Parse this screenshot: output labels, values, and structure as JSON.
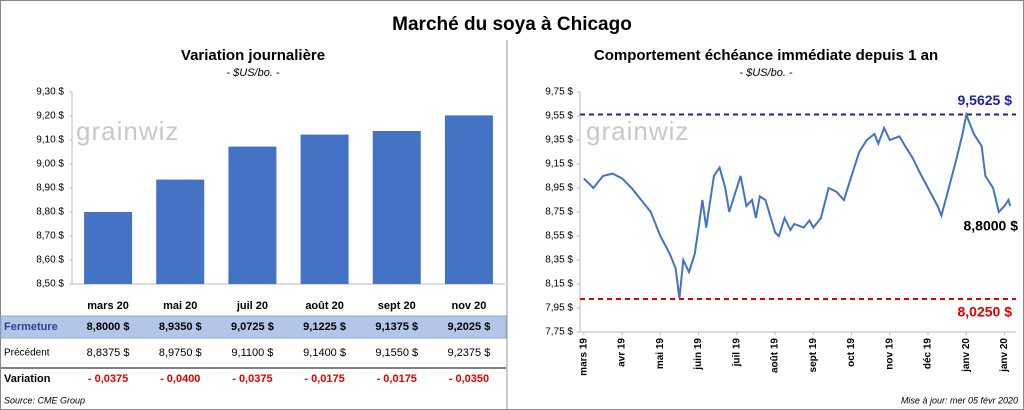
{
  "title": "Marché du soya à Chicago",
  "chart_data": [
    {
      "type": "bar",
      "title": "Variation  journalière",
      "subtitle": "- $US/bo. -",
      "watermark": "grainwiz",
      "categories": [
        "mars 20",
        "mai 20",
        "juil 20",
        "août 20",
        "sept 20",
        "nov 20"
      ],
      "values": [
        8.8,
        8.935,
        9.0725,
        9.1225,
        9.1375,
        9.2025
      ],
      "color": "#4472c4",
      "ylim": [
        8.5,
        9.3
      ],
      "yticks": [
        {
          "value": 8.5,
          "label": "8,50 $"
        },
        {
          "value": 8.6,
          "label": "8,60 $"
        },
        {
          "value": 8.7,
          "label": "8,70 $"
        },
        {
          "value": 8.8,
          "label": "8,80 $"
        },
        {
          "value": 8.9,
          "label": "8,90 $"
        },
        {
          "value": 9.0,
          "label": "9,00 $"
        },
        {
          "value": 9.1,
          "label": "9,10 $"
        },
        {
          "value": 9.2,
          "label": "9,20 $"
        },
        {
          "value": 9.3,
          "label": "9,30 $"
        }
      ]
    },
    {
      "type": "line",
      "title": "Comportement  échéance immédiate depuis 1 an",
      "subtitle": "- $US/bo. -",
      "watermark": "grainwiz",
      "x": [
        0,
        0.25,
        0.5,
        0.75,
        1.0,
        1.25,
        1.5,
        1.75,
        2.0,
        2.25,
        2.4,
        2.5,
        2.6,
        2.75,
        2.9,
        3.0,
        3.1,
        3.2,
        3.4,
        3.55,
        3.7,
        3.8,
        4.0,
        4.1,
        4.25,
        4.4,
        4.5,
        4.6,
        4.75,
        5.0,
        5.1,
        5.25,
        5.4,
        5.5,
        5.75,
        5.9,
        6.0,
        6.2,
        6.4,
        6.6,
        6.8,
        7.0,
        7.2,
        7.4,
        7.6,
        7.7,
        7.85,
        8.0,
        8.25,
        8.4,
        8.6,
        8.75,
        9.0,
        9.25,
        9.35,
        9.5,
        9.75,
        9.9,
        10.0,
        10.2,
        10.4,
        10.5,
        10.7,
        10.85,
        11.0,
        11.1,
        11.15
      ],
      "series": [
        {
          "name": "Échéance immédiate",
          "color": "#4472c4",
          "values": [
            9.03,
            8.95,
            9.05,
            9.07,
            9.03,
            8.95,
            8.85,
            8.75,
            8.55,
            8.4,
            8.28,
            8.03,
            8.35,
            8.25,
            8.4,
            8.62,
            8.85,
            8.62,
            9.05,
            9.12,
            8.95,
            8.75,
            8.95,
            9.05,
            8.8,
            8.85,
            8.7,
            8.88,
            8.85,
            8.58,
            8.55,
            8.7,
            8.6,
            8.65,
            8.62,
            8.68,
            8.62,
            8.7,
            8.95,
            8.92,
            8.85,
            9.05,
            9.25,
            9.35,
            9.4,
            9.32,
            9.45,
            9.35,
            9.38,
            9.3,
            9.2,
            9.1,
            8.95,
            8.8,
            8.72,
            8.9,
            9.2,
            9.4,
            9.56,
            9.4,
            9.3,
            9.05,
            8.95,
            8.75,
            8.8,
            8.85,
            8.8
          ]
        }
      ],
      "xlim": [
        -0.1,
        11.3
      ],
      "xticks": [
        {
          "value": 0,
          "label": "mars 19"
        },
        {
          "value": 1,
          "label": "avr 19"
        },
        {
          "value": 2,
          "label": "mai 19"
        },
        {
          "value": 3,
          "label": "juin 19"
        },
        {
          "value": 4,
          "label": "juil 19"
        },
        {
          "value": 5,
          "label": "août 19"
        },
        {
          "value": 6,
          "label": "sept 19"
        },
        {
          "value": 7,
          "label": "oct 19"
        },
        {
          "value": 8,
          "label": "nov 19"
        },
        {
          "value": 9,
          "label": "déc 19"
        },
        {
          "value": 10,
          "label": "janv 20"
        },
        {
          "value": 11,
          "label": "janv 20"
        }
      ],
      "ylim": [
        7.75,
        9.75
      ],
      "yticks": [
        {
          "value": 7.75,
          "label": "7,75 $"
        },
        {
          "value": 7.95,
          "label": "7,95 $"
        },
        {
          "value": 8.15,
          "label": "8,15 $"
        },
        {
          "value": 8.35,
          "label": "8,35 $"
        },
        {
          "value": 8.55,
          "label": "8,55 $"
        },
        {
          "value": 8.75,
          "label": "8,75 $"
        },
        {
          "value": 8.95,
          "label": "8,95 $"
        },
        {
          "value": 9.15,
          "label": "9,15 $"
        },
        {
          "value": 9.35,
          "label": "9,35 $"
        },
        {
          "value": 9.55,
          "label": "9,55 $"
        },
        {
          "value": 9.75,
          "label": "9,75 $"
        }
      ],
      "reference_lines": [
        {
          "value": 9.5625,
          "label": "9,5625  $",
          "color": "#2323a0"
        },
        {
          "value": 8.025,
          "label": "8,0250  $",
          "color": "#e00000"
        }
      ],
      "last_label": {
        "value": 8.8,
        "label": "8,8000 $"
      }
    }
  ],
  "table": {
    "rows": [
      [
        "Fermeture",
        "8,8000  $",
        "8,9350  $",
        "9,0725  $",
        "9,1225  $",
        "9,1375  $",
        "9,2025  $"
      ],
      [
        "Précédent",
        "8,8375  $",
        "8,9750  $",
        "9,1100  $",
        "9,1400  $",
        "9,1550  $",
        "9,2375  $"
      ],
      [
        "Variation",
        "- 0,0375",
        "- 0,0400",
        "- 0,0375",
        "- 0,0175",
        "- 0,0175",
        "- 0,0350"
      ]
    ]
  },
  "source": "Source: CME Group",
  "updated": "Mise à jour: mer 05 févr 2020"
}
